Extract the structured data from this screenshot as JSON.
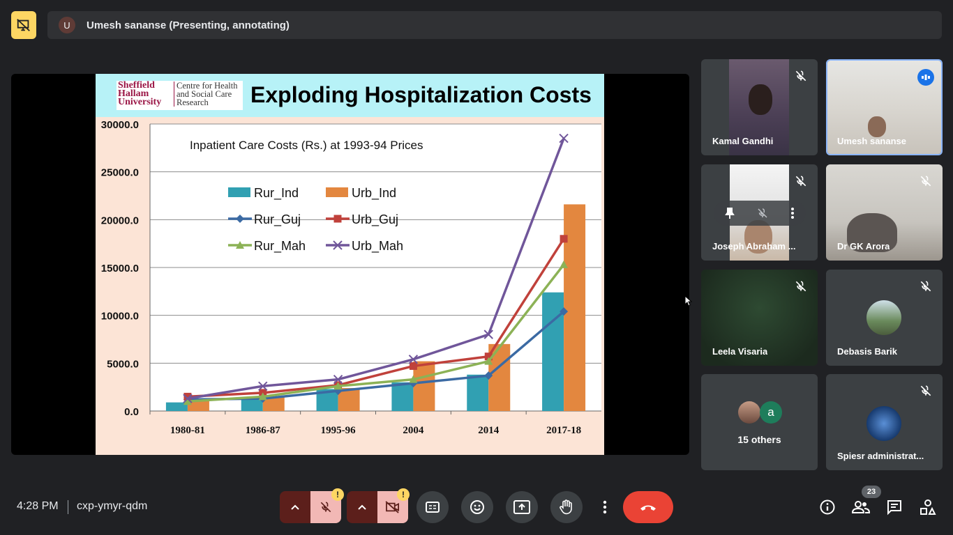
{
  "top_bar": {
    "presenter_initial": "U",
    "presenter_label": "Umesh sananse (Presenting, annotating)"
  },
  "slide": {
    "logo_university": "Sheffield Hallam University",
    "logo_centre": "Centre for Health and Social Care Research",
    "title": "Exploding Hospitalization Costs"
  },
  "chart_data": {
    "type": "bar",
    "title": "Inpatient Care Costs (Rs.) at 1993-94 Prices",
    "categories": [
      "1980-81",
      "1986-87",
      "1995-96",
      "2004",
      "2014",
      "2017-18"
    ],
    "ylim": [
      0,
      30000
    ],
    "yticks": [
      "0.0",
      "5000.0",
      "10000.0",
      "15000.0",
      "20000.0",
      "25000.0",
      "30000.0"
    ],
    "grid": true,
    "legend_position": "upper-left inside plot",
    "bar_series": [
      {
        "name": "Rur_Ind",
        "color": "#31a0b2",
        "values": [
          900,
          1300,
          2300,
          3000,
          3800,
          12400
        ]
      },
      {
        "name": "Urb_Ind",
        "color": "#e3873f",
        "values": [
          1200,
          1500,
          2400,
          5200,
          7000,
          21600
        ]
      }
    ],
    "line_series": [
      {
        "name": "Rur_Guj",
        "color": "#3b6aa3",
        "marker": "diamond",
        "values": [
          1200,
          1300,
          2100,
          2900,
          3700,
          10400
        ]
      },
      {
        "name": "Urb_Guj",
        "color": "#c0413b",
        "marker": "square",
        "values": [
          1500,
          1900,
          2700,
          4700,
          5700,
          18000
        ]
      },
      {
        "name": "Rur_Mah",
        "color": "#8cb256",
        "marker": "triangle",
        "values": [
          1000,
          1500,
          2600,
          3300,
          5200,
          15300
        ]
      },
      {
        "name": "Urb_Mah",
        "color": "#70569a",
        "marker": "x",
        "values": [
          1300,
          2600,
          3300,
          5400,
          8000,
          28500
        ]
      }
    ]
  },
  "participants": [
    {
      "name": "Kamal Gandhi",
      "muted": true
    },
    {
      "name": "Umesh sananse",
      "muted": false,
      "speaking": true
    },
    {
      "name": "Joseph Abraham ...",
      "muted": true
    },
    {
      "name": "Dr GK Arora",
      "muted": true
    },
    {
      "name": "Leela Visaria",
      "muted": true
    },
    {
      "name": "Debasis Barik",
      "muted": true
    },
    {
      "name": "15 others",
      "avatar_letter": "a"
    },
    {
      "name": "Spiesr administrat...",
      "muted": true
    }
  ],
  "bottom_bar": {
    "time": "4:28 PM",
    "meeting_code": "cxp-ymyr-qdm",
    "warning_mark": "!",
    "people_count": "23"
  },
  "colors": {
    "background": "#202124",
    "tile": "#3c4043",
    "end_call": "#ea4335",
    "mic_off_bg": "#f2b8b5",
    "warning": "#fdd663",
    "speaking": "#1a73e8"
  }
}
